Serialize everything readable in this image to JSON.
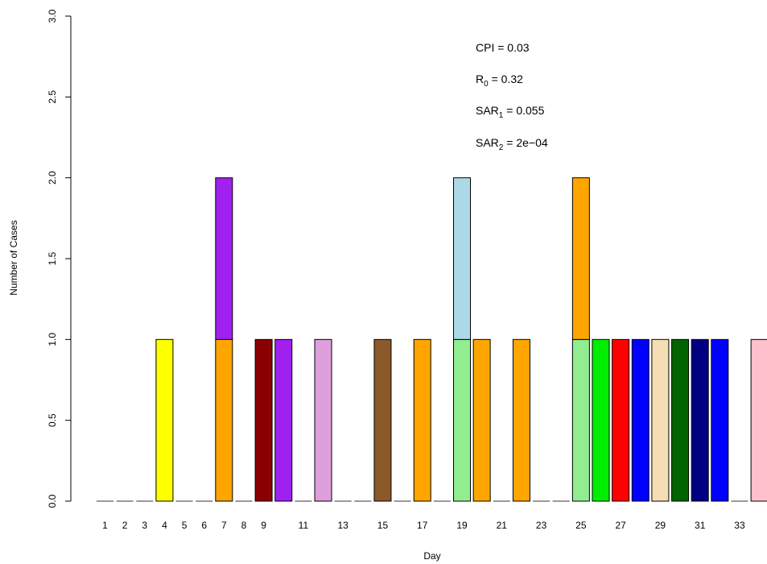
{
  "chart_data": {
    "type": "bar",
    "stacked": true,
    "xlabel": "Day",
    "ylabel": "Number of Cases",
    "ylim": [
      0,
      3
    ],
    "yticks": [
      "0.0",
      "0.5",
      "1.0",
      "1.5",
      "2.0",
      "2.5",
      "3.0"
    ],
    "ytick_values": [
      0,
      0.5,
      1,
      1.5,
      2,
      2.5,
      3
    ],
    "categories": [
      1,
      2,
      3,
      4,
      5,
      6,
      7,
      8,
      9,
      10,
      11,
      12,
      13,
      14,
      15,
      16,
      17,
      18,
      19,
      20,
      21,
      22,
      23,
      24,
      25,
      26,
      27,
      28,
      29,
      30,
      31,
      32,
      33,
      34
    ],
    "xtick_labels": [
      {
        "day": 1,
        "label": "1"
      },
      {
        "day": 2,
        "label": "2"
      },
      {
        "day": 3,
        "label": "3"
      },
      {
        "day": 4,
        "label": "4"
      },
      {
        "day": 5,
        "label": "5"
      },
      {
        "day": 6,
        "label": "6"
      },
      {
        "day": 7,
        "label": "7"
      },
      {
        "day": 8,
        "label": "8"
      },
      {
        "day": 9,
        "label": "9"
      },
      {
        "day": 11,
        "label": "11"
      },
      {
        "day": 13,
        "label": "13"
      },
      {
        "day": 15,
        "label": "15"
      },
      {
        "day": 17,
        "label": "17"
      },
      {
        "day": 19,
        "label": "19"
      },
      {
        "day": 21,
        "label": "21"
      },
      {
        "day": 23,
        "label": "23"
      },
      {
        "day": 25,
        "label": "25"
      },
      {
        "day": 27,
        "label": "27"
      },
      {
        "day": 29,
        "label": "29"
      },
      {
        "day": 31,
        "label": "31"
      },
      {
        "day": 33,
        "label": "33"
      }
    ],
    "bars": [
      {
        "day": 4,
        "segments": [
          {
            "value": 1,
            "color": "#ffff00"
          }
        ]
      },
      {
        "day": 7,
        "segments": [
          {
            "value": 1,
            "color": "#ffa500"
          },
          {
            "value": 1,
            "color": "#a020f0"
          }
        ]
      },
      {
        "day": 9,
        "segments": [
          {
            "value": 1,
            "color": "#8b0000"
          }
        ]
      },
      {
        "day": 10,
        "segments": [
          {
            "value": 1,
            "color": "#a020f0"
          }
        ]
      },
      {
        "day": 12,
        "segments": [
          {
            "value": 1,
            "color": "#dda0dd"
          }
        ]
      },
      {
        "day": 15,
        "segments": [
          {
            "value": 1,
            "color": "#8b5a2b"
          }
        ]
      },
      {
        "day": 17,
        "segments": [
          {
            "value": 1,
            "color": "#ffa500"
          }
        ]
      },
      {
        "day": 19,
        "segments": [
          {
            "value": 1,
            "color": "#90ee90"
          },
          {
            "value": 1,
            "color": "#add8e6"
          }
        ]
      },
      {
        "day": 20,
        "segments": [
          {
            "value": 1,
            "color": "#ffa500"
          }
        ]
      },
      {
        "day": 22,
        "segments": [
          {
            "value": 1,
            "color": "#ffa500"
          }
        ]
      },
      {
        "day": 25,
        "segments": [
          {
            "value": 1,
            "color": "#90ee90"
          },
          {
            "value": 1,
            "color": "#ffa500"
          }
        ]
      },
      {
        "day": 26,
        "segments": [
          {
            "value": 1,
            "color": "#00ee00"
          }
        ]
      },
      {
        "day": 27,
        "segments": [
          {
            "value": 1,
            "color": "#ff0000"
          }
        ]
      },
      {
        "day": 28,
        "segments": [
          {
            "value": 1,
            "color": "#0000ff"
          }
        ]
      },
      {
        "day": 29,
        "segments": [
          {
            "value": 1,
            "color": "#f5deb3"
          }
        ]
      },
      {
        "day": 30,
        "segments": [
          {
            "value": 1,
            "color": "#006400"
          }
        ]
      },
      {
        "day": 31,
        "segments": [
          {
            "value": 1,
            "color": "#000080"
          }
        ]
      },
      {
        "day": 32,
        "segments": [
          {
            "value": 1,
            "color": "#0000ff"
          }
        ]
      },
      {
        "day": 34,
        "segments": [
          {
            "value": 1,
            "color": "#ffc0cb"
          }
        ]
      }
    ],
    "annotations": [
      {
        "main": "CPI = 0.03",
        "sub": "",
        "rest": ""
      },
      {
        "main": "R",
        "sub": "0",
        "rest": " = 0.32"
      },
      {
        "main": "SAR",
        "sub": "1",
        "rest": " = 0.055"
      },
      {
        "main": "SAR",
        "sub": "2",
        "rest": " = 2e−04"
      }
    ],
    "grid": false,
    "legend": "none",
    "colors": {
      "axis": "#000000",
      "bar_border": "#000000",
      "zero_dash": "#9a9a9a"
    }
  }
}
